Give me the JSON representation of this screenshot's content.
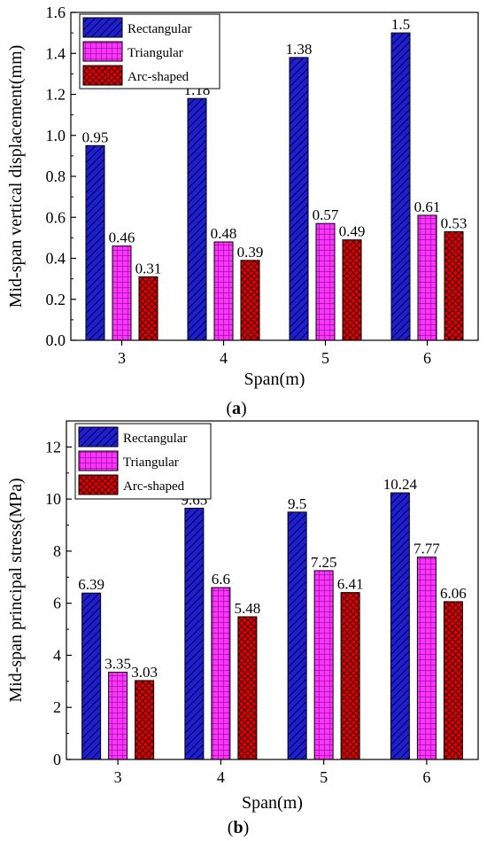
{
  "chart_data": [
    {
      "type": "bar",
      "panel_label": "(a)",
      "categories": [
        "3",
        "4",
        "5",
        "6"
      ],
      "series": [
        {
          "name": "Rectangular",
          "values": [
            0.95,
            1.18,
            1.38,
            1.5
          ],
          "color": "#1f1fcc",
          "pattern": "diagonal-hatch"
        },
        {
          "name": "Triangular",
          "values": [
            0.46,
            0.48,
            0.57,
            0.61
          ],
          "color": "#ff33ff",
          "pattern": "grid"
        },
        {
          "name": "Arc-shaped",
          "values": [
            0.31,
            0.39,
            0.49,
            0.53
          ],
          "color": "#e00000",
          "pattern": "crosshatch"
        }
      ],
      "value_labels": [
        [
          "0.95",
          "1.18",
          "1.38",
          "1.5"
        ],
        [
          "0.46",
          "0.48",
          "0.57",
          "0.61"
        ],
        [
          "0.31",
          "0.39",
          "0.49",
          "0.53"
        ]
      ],
      "xlabel": "Span(m)",
      "ylabel": "Mid-span vertical displacement(mm)",
      "ylim": [
        0,
        1.6
      ],
      "yticks": [
        "0.0",
        "0.2",
        "0.4",
        "0.6",
        "0.8",
        "1.0",
        "1.2",
        "1.4",
        "1.6"
      ],
      "legend_position": "top-left",
      "grid": false
    },
    {
      "type": "bar",
      "panel_label": "(b)",
      "categories": [
        "3",
        "4",
        "5",
        "6"
      ],
      "series": [
        {
          "name": "Rectangular",
          "values": [
            6.39,
            9.65,
            9.5,
            10.24
          ],
          "color": "#1f1fcc",
          "pattern": "diagonal-hatch"
        },
        {
          "name": "Triangular",
          "values": [
            3.35,
            6.6,
            7.25,
            7.77
          ],
          "color": "#ff33ff",
          "pattern": "grid"
        },
        {
          "name": "Arc-shaped",
          "values": [
            3.03,
            5.48,
            6.41,
            6.06
          ],
          "color": "#e00000",
          "pattern": "crosshatch"
        }
      ],
      "value_labels": [
        [
          "6.39",
          "9.65",
          "9.5",
          "10.24"
        ],
        [
          "3.35",
          "6.6",
          "7.25",
          "7.77"
        ],
        [
          "3.03",
          "5.48",
          "6.41",
          "6.06"
        ]
      ],
      "xlabel": "Span(m)",
      "ylabel": "Mid-span principal stress(MPa)",
      "ylim": [
        0,
        13
      ],
      "yticks": [
        "0",
        "2",
        "4",
        "6",
        "8",
        "10",
        "12"
      ],
      "legend_position": "top-left",
      "grid": false
    }
  ]
}
